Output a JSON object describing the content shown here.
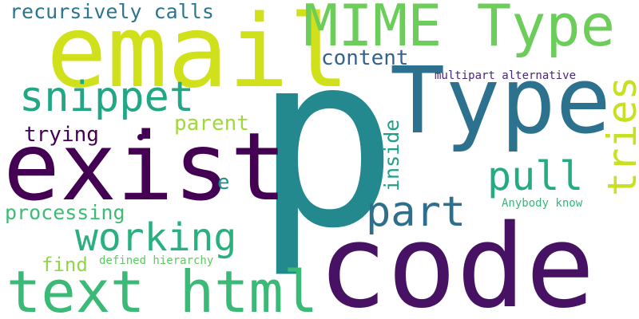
{
  "words": [
    {
      "id": "p",
      "text": "p",
      "color": "#23898e"
    },
    {
      "id": "code",
      "text": "code",
      "color": "#471164"
    },
    {
      "id": "exist",
      "text": "exist",
      "color": "#440154"
    },
    {
      "id": "email",
      "text": "email",
      "color": "#d0e11c"
    },
    {
      "id": "type-large",
      "text": "Type",
      "color": "#2c728e"
    },
    {
      "id": "mime-type",
      "text": "MIME Type",
      "color": "#6ccd5a"
    },
    {
      "id": "text-html",
      "text": "text html",
      "color": "#3aba76"
    },
    {
      "id": "working",
      "text": "working",
      "color": "#2ab07f"
    },
    {
      "id": "snippet",
      "text": "snippet",
      "color": "#22a785"
    },
    {
      "id": "part",
      "text": "part",
      "color": "#2d708e"
    },
    {
      "id": "pull",
      "text": "pull",
      "color": "#25ab82"
    },
    {
      "id": "tries",
      "text": "tries",
      "color": "#c8e020"
    },
    {
      "id": "recursively-calls",
      "text": "recursively calls",
      "color": "#2a768e"
    },
    {
      "id": "content",
      "text": "content",
      "color": "#33638d"
    },
    {
      "id": "processing",
      "text": "processing",
      "color": "#3dbc74"
    },
    {
      "id": "parent",
      "text": "parent",
      "color": "#a0da39"
    },
    {
      "id": "trying",
      "text": "trying",
      "color": "#440154"
    },
    {
      "id": "inside",
      "text": "inside",
      "color": "#1fa088"
    },
    {
      "id": "find",
      "text": "find",
      "color": "#8fd744"
    },
    {
      "id": "defined-hierarchy",
      "text": "defined hierarchy",
      "color": "#5ec962"
    },
    {
      "id": "multipart-alternative",
      "text": "multipart alternative",
      "color": "#482878"
    },
    {
      "id": "anybody-know",
      "text": "Anybody know",
      "color": "#35b779"
    },
    {
      "id": "e",
      "text": "e",
      "color": "#21918c"
    },
    {
      "id": "dot",
      "text": "",
      "color": "#440154"
    }
  ]
}
